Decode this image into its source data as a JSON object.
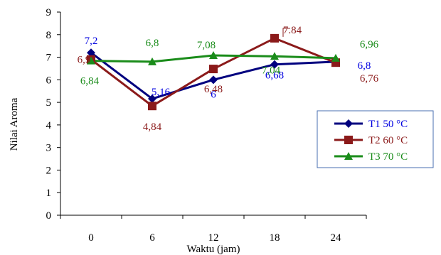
{
  "chart_data": {
    "type": "line",
    "x": [
      "0",
      "6",
      "12",
      "18",
      "24"
    ],
    "ylim": [
      0,
      9
    ],
    "yticks": [
      "0",
      "1",
      "2",
      "3",
      "4",
      "5",
      "6",
      "7",
      "8",
      "9"
    ],
    "xlabel": "Waktu (jam)",
    "ylabel": "Nilai Aroma",
    "legend_position": "right",
    "grid": false,
    "series": [
      {
        "name": "T1 50 °C",
        "color": "#00007f",
        "label_color": "#0000e0",
        "marker": "diamond",
        "values": [
          7.2,
          5.16,
          6,
          6.68,
          6.8
        ],
        "labels": [
          "7,2",
          "5,16",
          "6",
          "6,68",
          "6,8"
        ]
      },
      {
        "name": "T2 60 °C",
        "color": "#8b1a1a",
        "label_color": "#8b1a1a",
        "marker": "square",
        "values": [
          6.9,
          4.84,
          6.48,
          7.84,
          6.76
        ],
        "labels": [
          "6,9",
          "4,84",
          "6,48",
          "7.84",
          "6,76"
        ]
      },
      {
        "name": "T3 70 °C",
        "color": "#1a8c1a",
        "label_color": "#1a8c1a",
        "marker": "triangle",
        "values": [
          6.84,
          6.8,
          7.08,
          7.04,
          6.96
        ],
        "labels": [
          "6,84",
          "6,8",
          "7,08",
          "7,04",
          "6,96"
        ]
      }
    ]
  }
}
